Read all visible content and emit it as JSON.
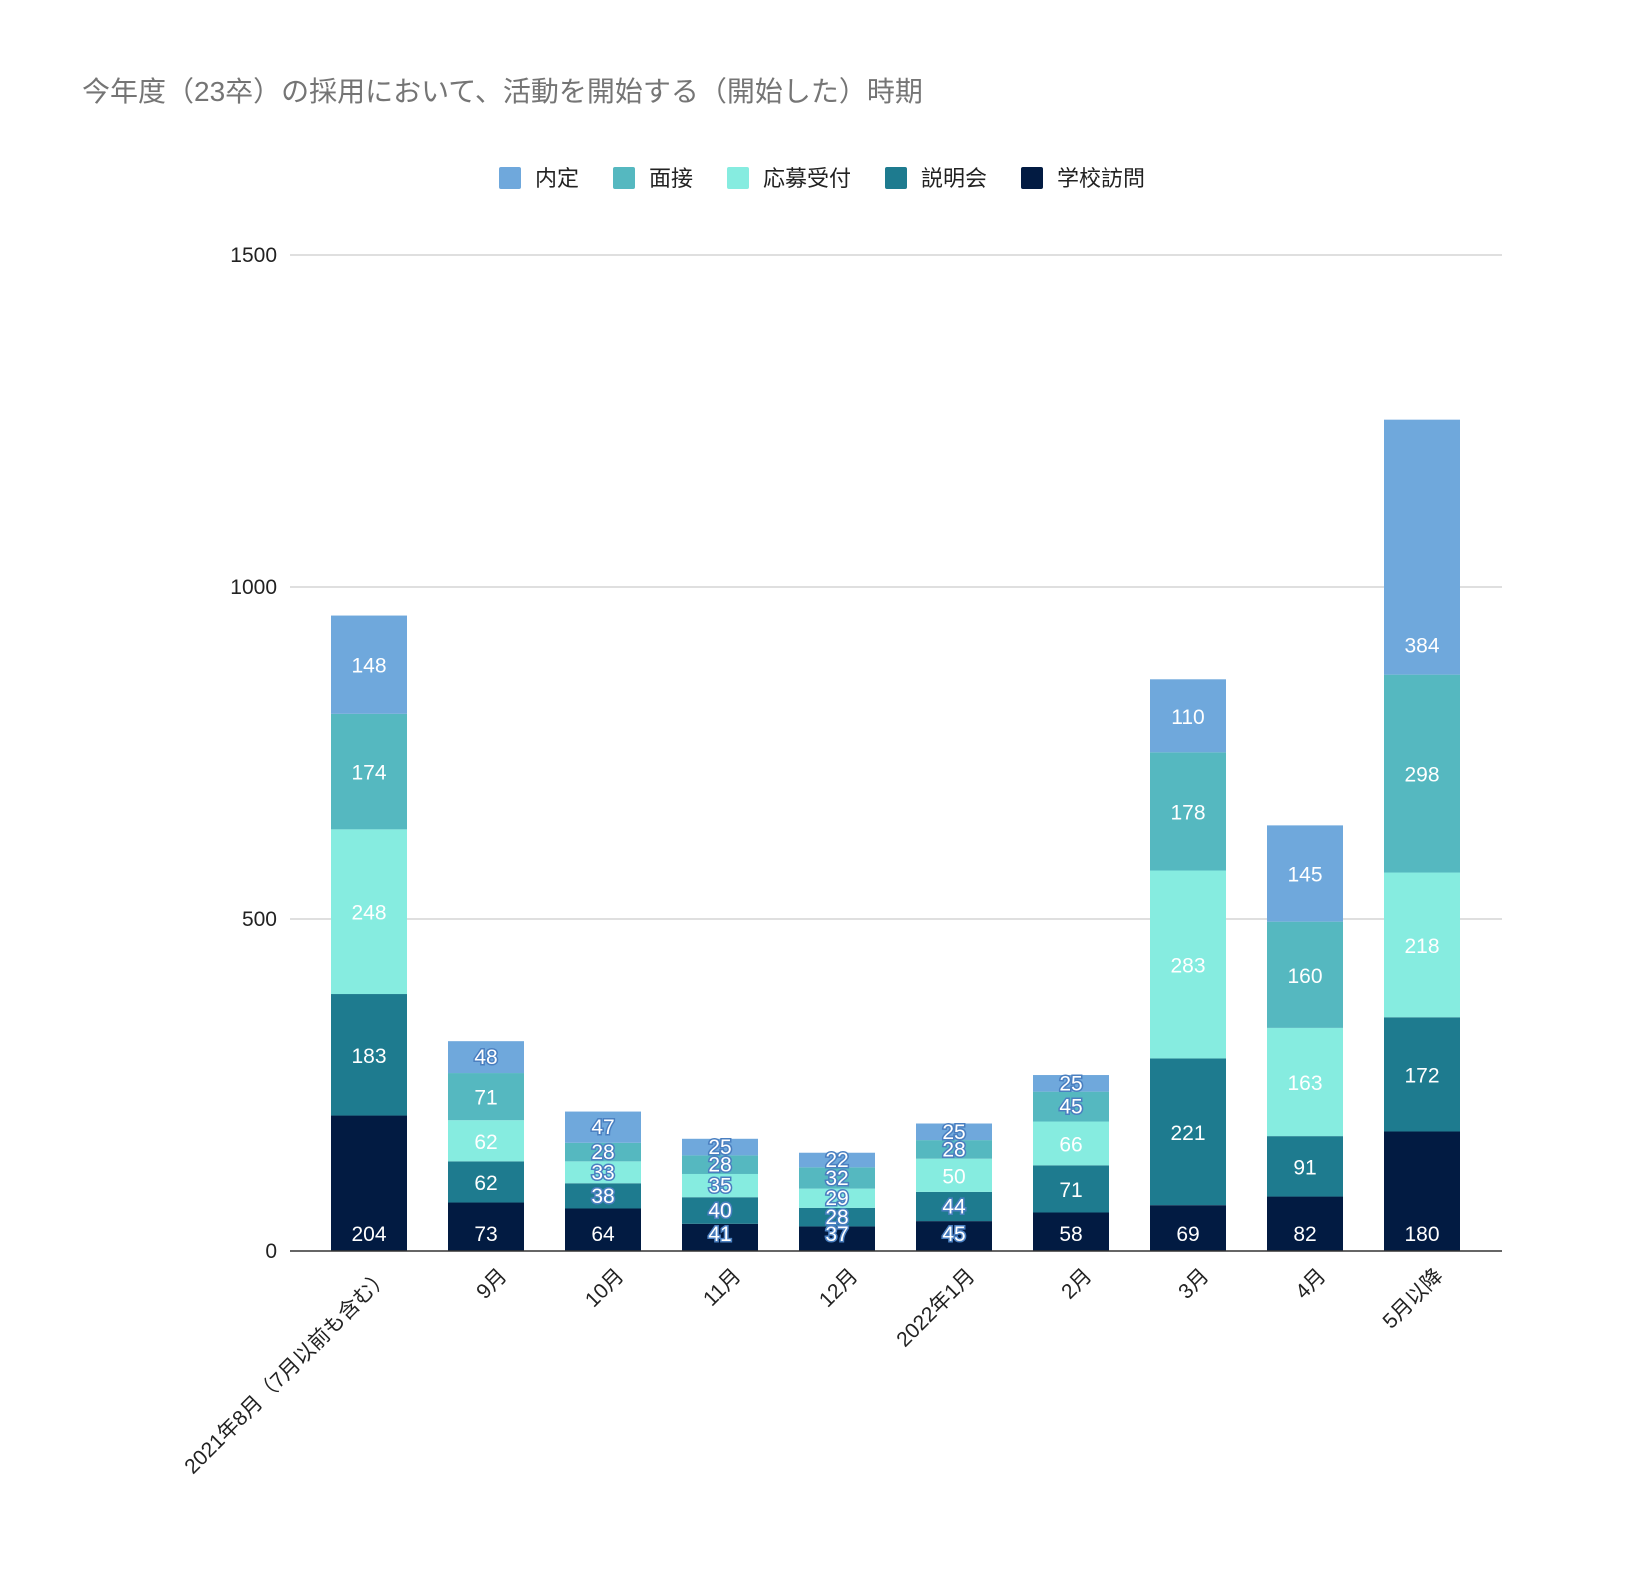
{
  "chart_data": {
    "type": "bar",
    "stacked": true,
    "title": "今年度（23卒）の採用において、活動を開始する（開始した）時期",
    "categories": [
      "2021年8月（7月以前も含む）",
      "9月",
      "10月",
      "11月",
      "12月",
      "2022年1月",
      "2月",
      "3月",
      "4月",
      "5月以降"
    ],
    "series": [
      {
        "name": "学校訪問",
        "color": "#021b42",
        "values": [
          204,
          73,
          64,
          41,
          37,
          45,
          58,
          69,
          82,
          180
        ]
      },
      {
        "name": "説明会",
        "color": "#1e7b8f",
        "values": [
          183,
          62,
          38,
          40,
          28,
          44,
          71,
          221,
          91,
          172
        ]
      },
      {
        "name": "応募受付",
        "color": "#86ece0",
        "values": [
          248,
          62,
          33,
          35,
          29,
          50,
          66,
          283,
          163,
          218
        ]
      },
      {
        "name": "面接",
        "color": "#55b8c0",
        "values": [
          174,
          71,
          28,
          28,
          32,
          28,
          45,
          178,
          160,
          298
        ]
      },
      {
        "name": "内定",
        "color": "#6fa8dc",
        "values": [
          148,
          48,
          47,
          25,
          22,
          25,
          25,
          110,
          145,
          384
        ]
      }
    ],
    "legend_order": [
      "内定",
      "面接",
      "応募受付",
      "説明会",
      "学校訪問"
    ],
    "legend_position": "top",
    "ylim": [
      0,
      1500
    ],
    "yticks": [
      "0",
      "500",
      "1000",
      "1500"
    ],
    "grid": true,
    "xlabel": "",
    "ylabel": ""
  }
}
